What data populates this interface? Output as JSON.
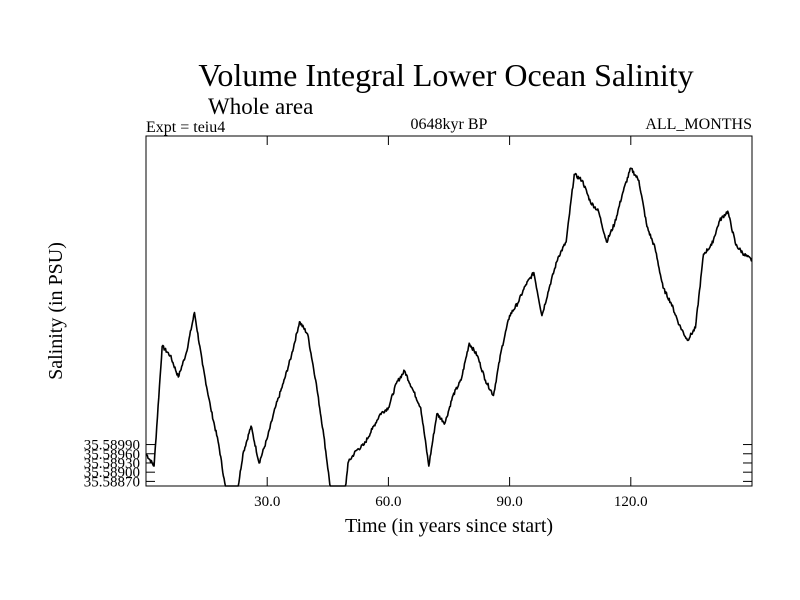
{
  "chart_data": {
    "type": "line",
    "title": "Volume Integral Lower Ocean Salinity",
    "subtitle": "Whole area",
    "experiment_label": "Expt = teiu4",
    "period_label": "0648kyr BP",
    "months_label": "ALL_MONTHS",
    "xlabel": "Time (in years since start)",
    "ylabel": "Salinity (in PSU)",
    "xlim": [
      0,
      150
    ],
    "ylim": [
      35.58855,
      35.59995
    ],
    "x_ticks": [
      30,
      60,
      90,
      120
    ],
    "x_tick_labels": [
      "30.0",
      "60.0",
      "90.0",
      "120.0"
    ],
    "y_ticks": [
      35.5887,
      35.589,
      35.5893,
      35.5896,
      35.5899
    ],
    "y_tick_labels": [
      "35.58870",
      "35.58900",
      "35.58930",
      "35.58960",
      "35.58990"
    ],
    "grid": false,
    "series": [
      {
        "name": "salinity",
        "x": [
          0,
          2,
          4,
          6,
          8,
          10,
          12,
          14,
          16,
          18,
          20,
          22,
          24,
          26,
          28,
          30,
          32,
          34,
          36,
          38,
          40,
          42,
          44,
          46,
          48,
          50,
          52,
          54,
          56,
          58,
          60,
          62,
          64,
          66,
          68,
          70,
          72,
          74,
          76,
          78,
          80,
          82,
          84,
          86,
          88,
          90,
          92,
          94,
          96,
          98,
          100,
          102,
          104,
          106,
          108,
          110,
          112,
          114,
          116,
          118,
          120,
          122,
          124,
          126,
          128,
          130,
          132,
          134,
          136,
          138,
          140,
          142,
          144,
          146,
          148,
          150
        ],
        "values": [
          35.5896,
          35.5892,
          35.5931,
          35.5928,
          35.5921,
          35.5929,
          35.5942,
          35.5925,
          35.5911,
          35.5899,
          35.5882,
          35.5878,
          35.5896,
          35.5905,
          35.5893,
          35.5901,
          35.5911,
          35.5919,
          35.5928,
          35.5939,
          35.5935,
          35.592,
          35.5902,
          35.5881,
          35.5867,
          35.5893,
          35.5897,
          35.5899,
          35.5904,
          35.5909,
          35.5911,
          35.5919,
          35.5923,
          35.5917,
          35.5911,
          35.5892,
          35.5909,
          35.5906,
          35.5915,
          35.592,
          35.5932,
          35.5928,
          35.592,
          35.5915,
          35.593,
          35.5941,
          35.5945,
          35.5951,
          35.5955,
          35.5941,
          35.5951,
          35.596,
          35.5965,
          35.5987,
          35.5985,
          35.5978,
          35.5975,
          35.5965,
          35.5971,
          35.5981,
          35.5989,
          35.5985,
          35.597,
          35.5963,
          35.595,
          35.5945,
          35.5938,
          35.5933,
          35.5937,
          35.5961,
          35.5964,
          35.5972,
          35.5975,
          35.5964,
          35.5961,
          35.5959
        ]
      }
    ]
  }
}
